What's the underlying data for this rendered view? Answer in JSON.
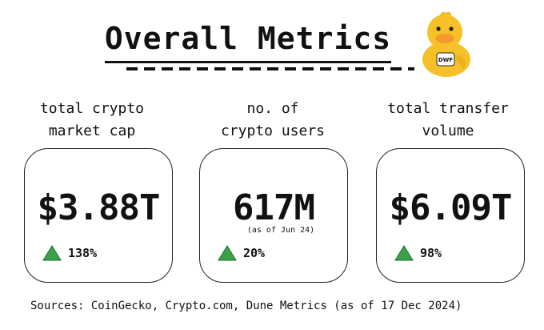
{
  "title": "Overall Metrics",
  "metrics": [
    {
      "label": "total crypto\nmarket cap",
      "value": "$3.88T",
      "note": "",
      "change": "138%"
    },
    {
      "label": "no. of\ncrypto users",
      "value": "617M",
      "note": "(as of Jun 24)",
      "change": "20%"
    },
    {
      "label": "total transfer\nvolume",
      "value": "$6.09T",
      "note": "",
      "change": "98%"
    }
  ],
  "duck_badge": "DWF",
  "sources": "Sources: CoinGecko, Crypto.com, Dune Metrics (as of 17 Dec 2024)",
  "colors": {
    "up": "#3aa34a",
    "duck": "#f6c028",
    "beak": "#f29a2e"
  },
  "icons": {
    "change": "triangle-up-icon",
    "logo": "duck-mascot-icon"
  }
}
